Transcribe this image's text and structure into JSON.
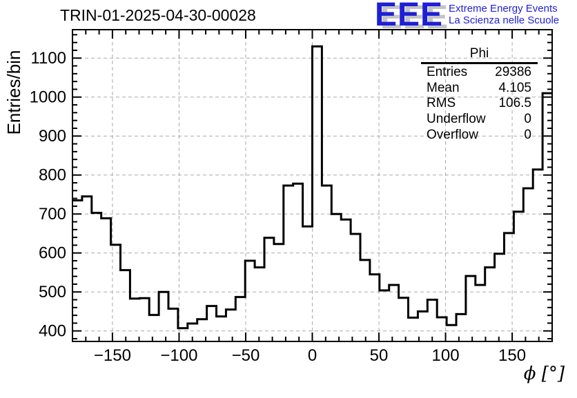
{
  "title": "TRIN-01-2025-04-30-00028",
  "logo": {
    "acronym": "EEE",
    "line1": "Extreme Energy Events",
    "line2": "La Scienza nelle Scuole",
    "blue": "#1f1fd6",
    "shadow_gray": "#c4c4c4"
  },
  "stats": {
    "title": "Phi",
    "rows": [
      {
        "label": "Entries",
        "value": "29386"
      },
      {
        "label": "Mean",
        "value": "4.105"
      },
      {
        "label": "RMS",
        "value": "106.5"
      },
      {
        "label": "Underflow",
        "value": "0"
      },
      {
        "label": "Overflow",
        "value": "0"
      }
    ]
  },
  "chart_data": {
    "type": "bar",
    "style": "step-outline-histogram",
    "title": "TRIN-01-2025-04-30-00028",
    "xlabel": "ϕ [°]",
    "ylabel": "Entries/bin",
    "xlim": [
      -180,
      180
    ],
    "ylim": [
      373,
      1173
    ],
    "bin_start": -180,
    "bin_width": 7.2,
    "values": [
      735,
      745,
      703,
      689,
      621,
      556,
      483,
      484,
      441,
      500,
      457,
      407,
      419,
      430,
      464,
      437,
      455,
      487,
      580,
      563,
      639,
      623,
      773,
      778,
      668,
      1130,
      773,
      700,
      686,
      649,
      582,
      545,
      504,
      518,
      485,
      434,
      450,
      480,
      435,
      415,
      443,
      541,
      518,
      563,
      598,
      651,
      706,
      766,
      814,
      1010
    ],
    "x_major_ticks": [
      -150,
      -100,
      -50,
      0,
      50,
      100,
      150
    ],
    "x_minor_step": 10,
    "y_major_ticks": [
      400,
      500,
      600,
      700,
      800,
      900,
      1000,
      1100
    ],
    "y_minor_step": 20,
    "grid": true,
    "grid_color": "#a8a8a8",
    "line_color": "#000000",
    "frame_color": "#000000",
    "legend_position": "none"
  }
}
